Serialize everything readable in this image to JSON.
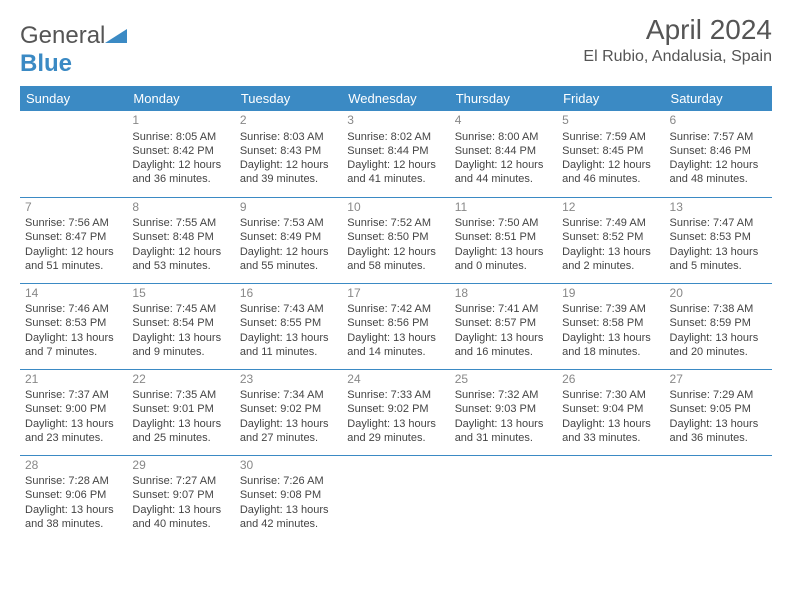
{
  "logo": {
    "text_gray": "General",
    "text_blue": "Blue"
  },
  "title": "April 2024",
  "location": "El Rubio, Andalusia, Spain",
  "colors": {
    "header_bg": "#3b8ac4",
    "header_fg": "#ffffff",
    "border": "#3b8ac4",
    "daynum": "#888888",
    "text": "#444444",
    "title": "#555555"
  },
  "day_headers": [
    "Sunday",
    "Monday",
    "Tuesday",
    "Wednesday",
    "Thursday",
    "Friday",
    "Saturday"
  ],
  "weeks": [
    [
      null,
      {
        "n": "1",
        "sr": "8:05 AM",
        "ss": "8:42 PM",
        "dl": "12 hours and 36 minutes."
      },
      {
        "n": "2",
        "sr": "8:03 AM",
        "ss": "8:43 PM",
        "dl": "12 hours and 39 minutes."
      },
      {
        "n": "3",
        "sr": "8:02 AM",
        "ss": "8:44 PM",
        "dl": "12 hours and 41 minutes."
      },
      {
        "n": "4",
        "sr": "8:00 AM",
        "ss": "8:44 PM",
        "dl": "12 hours and 44 minutes."
      },
      {
        "n": "5",
        "sr": "7:59 AM",
        "ss": "8:45 PM",
        "dl": "12 hours and 46 minutes."
      },
      {
        "n": "6",
        "sr": "7:57 AM",
        "ss": "8:46 PM",
        "dl": "12 hours and 48 minutes."
      }
    ],
    [
      {
        "n": "7",
        "sr": "7:56 AM",
        "ss": "8:47 PM",
        "dl": "12 hours and 51 minutes."
      },
      {
        "n": "8",
        "sr": "7:55 AM",
        "ss": "8:48 PM",
        "dl": "12 hours and 53 minutes."
      },
      {
        "n": "9",
        "sr": "7:53 AM",
        "ss": "8:49 PM",
        "dl": "12 hours and 55 minutes."
      },
      {
        "n": "10",
        "sr": "7:52 AM",
        "ss": "8:50 PM",
        "dl": "12 hours and 58 minutes."
      },
      {
        "n": "11",
        "sr": "7:50 AM",
        "ss": "8:51 PM",
        "dl": "13 hours and 0 minutes."
      },
      {
        "n": "12",
        "sr": "7:49 AM",
        "ss": "8:52 PM",
        "dl": "13 hours and 2 minutes."
      },
      {
        "n": "13",
        "sr": "7:47 AM",
        "ss": "8:53 PM",
        "dl": "13 hours and 5 minutes."
      }
    ],
    [
      {
        "n": "14",
        "sr": "7:46 AM",
        "ss": "8:53 PM",
        "dl": "13 hours and 7 minutes."
      },
      {
        "n": "15",
        "sr": "7:45 AM",
        "ss": "8:54 PM",
        "dl": "13 hours and 9 minutes."
      },
      {
        "n": "16",
        "sr": "7:43 AM",
        "ss": "8:55 PM",
        "dl": "13 hours and 11 minutes."
      },
      {
        "n": "17",
        "sr": "7:42 AM",
        "ss": "8:56 PM",
        "dl": "13 hours and 14 minutes."
      },
      {
        "n": "18",
        "sr": "7:41 AM",
        "ss": "8:57 PM",
        "dl": "13 hours and 16 minutes."
      },
      {
        "n": "19",
        "sr": "7:39 AM",
        "ss": "8:58 PM",
        "dl": "13 hours and 18 minutes."
      },
      {
        "n": "20",
        "sr": "7:38 AM",
        "ss": "8:59 PM",
        "dl": "13 hours and 20 minutes."
      }
    ],
    [
      {
        "n": "21",
        "sr": "7:37 AM",
        "ss": "9:00 PM",
        "dl": "13 hours and 23 minutes."
      },
      {
        "n": "22",
        "sr": "7:35 AM",
        "ss": "9:01 PM",
        "dl": "13 hours and 25 minutes."
      },
      {
        "n": "23",
        "sr": "7:34 AM",
        "ss": "9:02 PM",
        "dl": "13 hours and 27 minutes."
      },
      {
        "n": "24",
        "sr": "7:33 AM",
        "ss": "9:02 PM",
        "dl": "13 hours and 29 minutes."
      },
      {
        "n": "25",
        "sr": "7:32 AM",
        "ss": "9:03 PM",
        "dl": "13 hours and 31 minutes."
      },
      {
        "n": "26",
        "sr": "7:30 AM",
        "ss": "9:04 PM",
        "dl": "13 hours and 33 minutes."
      },
      {
        "n": "27",
        "sr": "7:29 AM",
        "ss": "9:05 PM",
        "dl": "13 hours and 36 minutes."
      }
    ],
    [
      {
        "n": "28",
        "sr": "7:28 AM",
        "ss": "9:06 PM",
        "dl": "13 hours and 38 minutes."
      },
      {
        "n": "29",
        "sr": "7:27 AM",
        "ss": "9:07 PM",
        "dl": "13 hours and 40 minutes."
      },
      {
        "n": "30",
        "sr": "7:26 AM",
        "ss": "9:08 PM",
        "dl": "13 hours and 42 minutes."
      },
      null,
      null,
      null,
      null
    ]
  ],
  "labels": {
    "sunrise": "Sunrise:",
    "sunset": "Sunset:",
    "daylight": "Daylight:"
  }
}
